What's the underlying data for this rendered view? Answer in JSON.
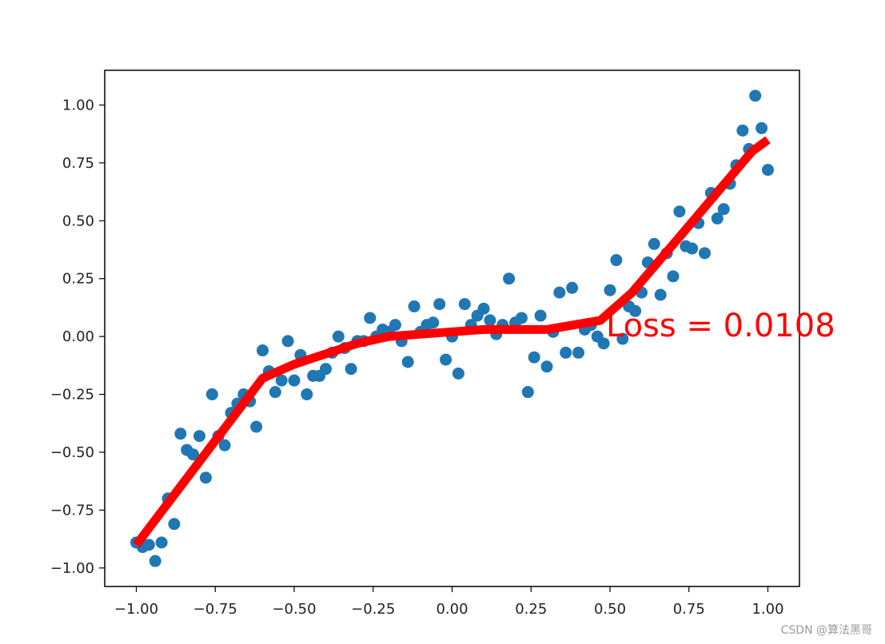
{
  "chart_data": {
    "type": "scatter",
    "title": "",
    "xlabel": "",
    "ylabel": "",
    "xlim": [
      -1.1,
      1.1
    ],
    "ylim": [
      -1.08,
      1.15
    ],
    "grid": false,
    "x_ticks": [
      -1.0,
      -0.75,
      -0.5,
      -0.25,
      0.0,
      0.25,
      0.5,
      0.75,
      1.0
    ],
    "x_tick_labels": [
      "−1.00",
      "−0.75",
      "−0.50",
      "−0.25",
      "0.00",
      "0.25",
      "0.50",
      "0.75",
      "1.00"
    ],
    "y_ticks": [
      1.0,
      0.75,
      0.5,
      0.25,
      0.0,
      -0.25,
      -0.5,
      -0.75,
      -1.0
    ],
    "y_tick_labels": [
      "1.00",
      "0.75",
      "0.50",
      "0.25",
      "0.00",
      "−0.25",
      "−0.50",
      "−0.75",
      "−1.00"
    ],
    "scatter_color": "#1f77b4",
    "fit_color": "#ff0000",
    "annotation": "Loss = 0.0108",
    "annotation_color": "#ff0000",
    "series": [
      {
        "type": "scatter",
        "points": [
          [
            -1.0,
            -0.89
          ],
          [
            -0.98,
            -0.91
          ],
          [
            -0.96,
            -0.9
          ],
          [
            -0.94,
            -0.97
          ],
          [
            -0.92,
            -0.89
          ],
          [
            -0.9,
            -0.7
          ],
          [
            -0.88,
            -0.81
          ],
          [
            -0.86,
            -0.42
          ],
          [
            -0.84,
            -0.49
          ],
          [
            -0.82,
            -0.51
          ],
          [
            -0.8,
            -0.43
          ],
          [
            -0.78,
            -0.61
          ],
          [
            -0.76,
            -0.25
          ],
          [
            -0.74,
            -0.43
          ],
          [
            -0.72,
            -0.47
          ],
          [
            -0.7,
            -0.33
          ],
          [
            -0.68,
            -0.29
          ],
          [
            -0.66,
            -0.25
          ],
          [
            -0.64,
            -0.28
          ],
          [
            -0.62,
            -0.39
          ],
          [
            -0.6,
            -0.06
          ],
          [
            -0.58,
            -0.15
          ],
          [
            -0.56,
            -0.24
          ],
          [
            -0.54,
            -0.19
          ],
          [
            -0.52,
            -0.02
          ],
          [
            -0.5,
            -0.19
          ],
          [
            -0.48,
            -0.08
          ],
          [
            -0.46,
            -0.25
          ],
          [
            -0.44,
            -0.17
          ],
          [
            -0.42,
            -0.17
          ],
          [
            -0.4,
            -0.14
          ],
          [
            -0.38,
            -0.07
          ],
          [
            -0.36,
            -0.0
          ],
          [
            -0.34,
            -0.05
          ],
          [
            -0.32,
            -0.14
          ],
          [
            -0.3,
            -0.02
          ],
          [
            -0.28,
            -0.02
          ],
          [
            -0.26,
            0.08
          ],
          [
            -0.24,
            0.0
          ],
          [
            -0.22,
            0.03
          ],
          [
            -0.2,
            0.02
          ],
          [
            -0.18,
            0.05
          ],
          [
            -0.16,
            -0.02
          ],
          [
            -0.14,
            -0.11
          ],
          [
            -0.12,
            0.13
          ],
          [
            -0.1,
            0.02
          ],
          [
            -0.08,
            0.05
          ],
          [
            -0.06,
            0.06
          ],
          [
            -0.04,
            0.14
          ],
          [
            -0.02,
            -0.1
          ],
          [
            0.0,
            0.0
          ],
          [
            0.02,
            -0.16
          ],
          [
            0.04,
            0.14
          ],
          [
            0.06,
            0.05
          ],
          [
            0.08,
            0.09
          ],
          [
            0.1,
            0.12
          ],
          [
            0.12,
            0.07
          ],
          [
            0.14,
            0.01
          ],
          [
            0.16,
            0.05
          ],
          [
            0.18,
            0.25
          ],
          [
            0.2,
            0.06
          ],
          [
            0.22,
            0.08
          ],
          [
            0.24,
            -0.24
          ],
          [
            0.26,
            -0.09
          ],
          [
            0.28,
            0.09
          ],
          [
            0.3,
            -0.13
          ],
          [
            0.32,
            0.02
          ],
          [
            0.34,
            0.19
          ],
          [
            0.36,
            -0.07
          ],
          [
            0.38,
            0.21
          ],
          [
            0.4,
            -0.07
          ],
          [
            0.42,
            0.03
          ],
          [
            0.44,
            0.05
          ],
          [
            0.46,
            0.0
          ],
          [
            0.48,
            -0.03
          ],
          [
            0.5,
            0.2
          ],
          [
            0.52,
            0.33
          ],
          [
            0.54,
            -0.01
          ],
          [
            0.56,
            0.13
          ],
          [
            0.58,
            0.11
          ],
          [
            0.6,
            0.19
          ],
          [
            0.62,
            0.32
          ],
          [
            0.64,
            0.4
          ],
          [
            0.66,
            0.18
          ],
          [
            0.68,
            0.36
          ],
          [
            0.7,
            0.26
          ],
          [
            0.72,
            0.54
          ],
          [
            0.74,
            0.39
          ],
          [
            0.76,
            0.38
          ],
          [
            0.78,
            0.49
          ],
          [
            0.8,
            0.36
          ],
          [
            0.82,
            0.62
          ],
          [
            0.84,
            0.51
          ],
          [
            0.86,
            0.55
          ],
          [
            0.88,
            0.66
          ],
          [
            0.9,
            0.74
          ],
          [
            0.92,
            0.89
          ],
          [
            0.94,
            0.81
          ],
          [
            0.96,
            1.04
          ],
          [
            0.98,
            0.9
          ],
          [
            1.0,
            0.72
          ]
        ]
      },
      {
        "type": "line",
        "points": [
          [
            -1.0,
            -0.9
          ],
          [
            -0.6,
            -0.18
          ],
          [
            -0.5,
            -0.12
          ],
          [
            -0.3,
            -0.03
          ],
          [
            -0.2,
            0.0
          ],
          [
            0.0,
            0.02
          ],
          [
            0.1,
            0.03
          ],
          [
            0.3,
            0.03
          ],
          [
            0.47,
            0.07
          ],
          [
            0.57,
            0.19
          ],
          [
            0.72,
            0.43
          ],
          [
            0.95,
            0.8
          ],
          [
            1.0,
            0.85
          ]
        ]
      }
    ]
  },
  "watermark": "CSDN @算法黑哥"
}
